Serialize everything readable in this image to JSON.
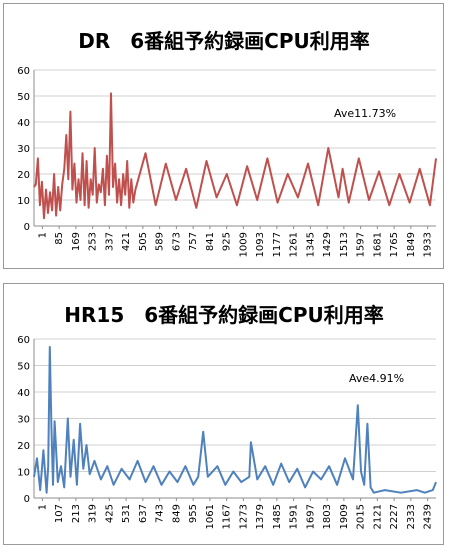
{
  "chart_data": [
    {
      "type": "line",
      "title": "DR　6番組予約録画CPU利用率",
      "annotation": "Ave11.73%",
      "color": "#c0504d",
      "ylim": [
        0,
        60
      ],
      "y_ticks": [
        0,
        10,
        20,
        30,
        40,
        50,
        60
      ],
      "x_range": [
        1,
        1980
      ],
      "x_tick_labels": [
        "1",
        "85",
        "169",
        "253",
        "337",
        "421",
        "505",
        "589",
        "673",
        "757",
        "841",
        "925",
        "1009",
        "1093",
        "1177",
        "1261",
        "1345",
        "1429",
        "1513",
        "1597",
        "1681",
        "1765",
        "1849",
        "1933"
      ],
      "grid": true,
      "average": 11.73,
      "series": [
        {
          "x": [
            1,
            10,
            20,
            30,
            40,
            50,
            60,
            70,
            80,
            90,
            100,
            110,
            120,
            130,
            140,
            150,
            160,
            170,
            180,
            190,
            200,
            210,
            220,
            230,
            240,
            250,
            260,
            270,
            280,
            290,
            300,
            310,
            320,
            330,
            340,
            350,
            360,
            370,
            380,
            390,
            400,
            410,
            420,
            430,
            440,
            450,
            460,
            470,
            480,
            490,
            500,
            550,
            600,
            650,
            700,
            750,
            800,
            850,
            900,
            950,
            1000,
            1050,
            1100,
            1150,
            1200,
            1250,
            1300,
            1350,
            1400,
            1450,
            1500,
            1520,
            1550,
            1600,
            1650,
            1700,
            1750,
            1800,
            1850,
            1900,
            1950,
            1980
          ],
          "y": [
            15,
            16,
            26,
            8,
            17,
            3,
            14,
            5,
            13,
            6,
            20,
            4,
            15,
            6,
            16,
            22,
            35,
            18,
            44,
            14,
            24,
            9,
            18,
            10,
            28,
            8,
            25,
            7,
            18,
            12,
            30,
            9,
            16,
            13,
            22,
            8,
            27,
            12,
            51,
            15,
            24,
            9,
            18,
            8,
            20,
            12,
            25,
            7,
            18,
            9,
            14,
            28,
            8,
            24,
            10,
            22,
            7,
            25,
            11,
            20,
            8,
            23,
            10,
            26,
            9,
            20,
            11,
            24,
            8,
            30,
            11,
            22,
            9,
            26,
            10,
            21,
            8,
            20,
            9,
            22,
            8,
            26
          ]
        }
      ]
    },
    {
      "type": "line",
      "title": "HR15　6番組予約録画CPU利用率",
      "annotation": "Ave4.91%",
      "color": "#4f81bd",
      "ylim": [
        0,
        60
      ],
      "y_ticks": [
        0,
        10,
        20,
        30,
        40,
        50,
        60
      ],
      "x_range": [
        1,
        2520
      ],
      "x_tick_labels": [
        "1",
        "107",
        "213",
        "319",
        "425",
        "531",
        "637",
        "743",
        "849",
        "955",
        "1061",
        "1167",
        "1273",
        "1379",
        "1485",
        "1591",
        "1697",
        "1803",
        "1909",
        "2015",
        "2121",
        "2227",
        "2333",
        "2439"
      ],
      "grid": true,
      "average": 4.91,
      "series": [
        {
          "x": [
            1,
            20,
            40,
            60,
            80,
            90,
            100,
            110,
            120,
            130,
            150,
            170,
            190,
            213,
            230,
            250,
            270,
            290,
            310,
            330,
            350,
            380,
            420,
            460,
            500,
            550,
            600,
            650,
            700,
            750,
            800,
            850,
            900,
            950,
            1000,
            1030,
            1061,
            1090,
            1150,
            1200,
            1250,
            1300,
            1350,
            1360,
            1400,
            1450,
            1500,
            1550,
            1600,
            1650,
            1700,
            1750,
            1800,
            1850,
            1900,
            1950,
            2000,
            2030,
            2050,
            2070,
            2090,
            2110,
            2130,
            2200,
            2300,
            2400,
            2450,
            2500,
            2520
          ],
          "y": [
            8,
            15,
            3,
            18,
            2,
            12,
            57,
            27,
            5,
            29,
            6,
            12,
            4,
            30,
            8,
            22,
            5,
            28,
            11,
            20,
            9,
            14,
            7,
            12,
            5,
            11,
            7,
            14,
            6,
            12,
            5,
            10,
            6,
            12,
            5,
            8,
            25,
            8,
            12,
            5,
            10,
            6,
            8,
            21,
            7,
            12,
            5,
            13,
            6,
            11,
            4,
            10,
            7,
            12,
            5,
            15,
            7,
            35,
            10,
            5,
            28,
            4,
            2,
            3,
            2,
            3,
            2,
            3,
            6
          ]
        }
      ]
    }
  ]
}
